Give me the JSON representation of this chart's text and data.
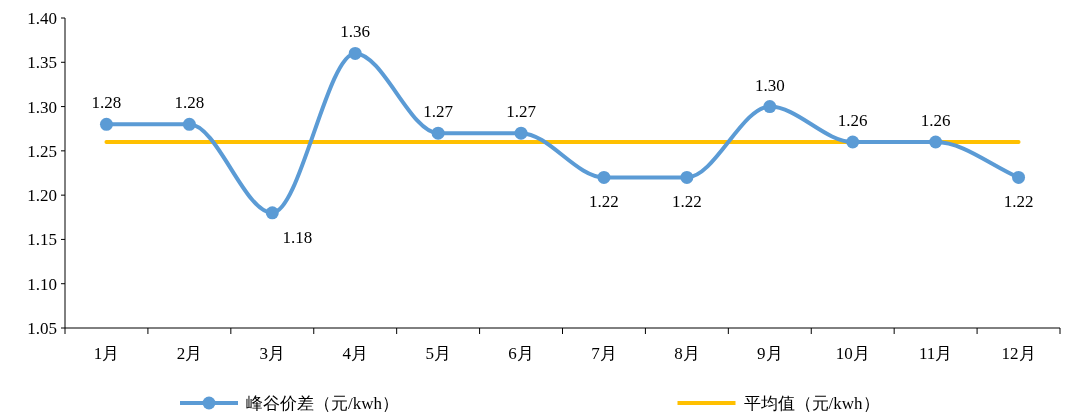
{
  "chart_data": {
    "type": "line",
    "categories": [
      "1月",
      "2月",
      "3月",
      "4月",
      "5月",
      "6月",
      "7月",
      "8月",
      "9月",
      "10月",
      "11月",
      "12月"
    ],
    "series": [
      {
        "name": "峰谷价差（元/kwh）",
        "color": "#5b9bd5",
        "marker": "circle",
        "value_labels": [
          "1.28",
          "1.28",
          "1.18",
          "1.36",
          "1.27",
          "1.27",
          "1.22",
          "1.22",
          "1.30",
          "1.26",
          "1.26",
          "1.22"
        ],
        "values": [
          1.28,
          1.28,
          1.18,
          1.36,
          1.27,
          1.27,
          1.22,
          1.22,
          1.3,
          1.26,
          1.26,
          1.22
        ]
      },
      {
        "name": "平均值（元/kwh）",
        "color": "#ffc000",
        "marker": "none",
        "values": [
          1.26,
          1.26,
          1.26,
          1.26,
          1.26,
          1.26,
          1.26,
          1.26,
          1.26,
          1.26,
          1.26,
          1.26
        ]
      }
    ],
    "ylim": [
      1.05,
      1.4
    ],
    "yticks": [
      {
        "value": 1.05,
        "label": "1.05"
      },
      {
        "value": 1.1,
        "label": "1.10"
      },
      {
        "value": 1.15,
        "label": "1.15"
      },
      {
        "value": 1.2,
        "label": "1.20"
      },
      {
        "value": 1.25,
        "label": "1.25"
      },
      {
        "value": 1.3,
        "label": "1.30"
      },
      {
        "value": 1.35,
        "label": "1.35"
      },
      {
        "value": 1.4,
        "label": "1.40"
      }
    ],
    "grid": false,
    "legend": "bottom"
  }
}
